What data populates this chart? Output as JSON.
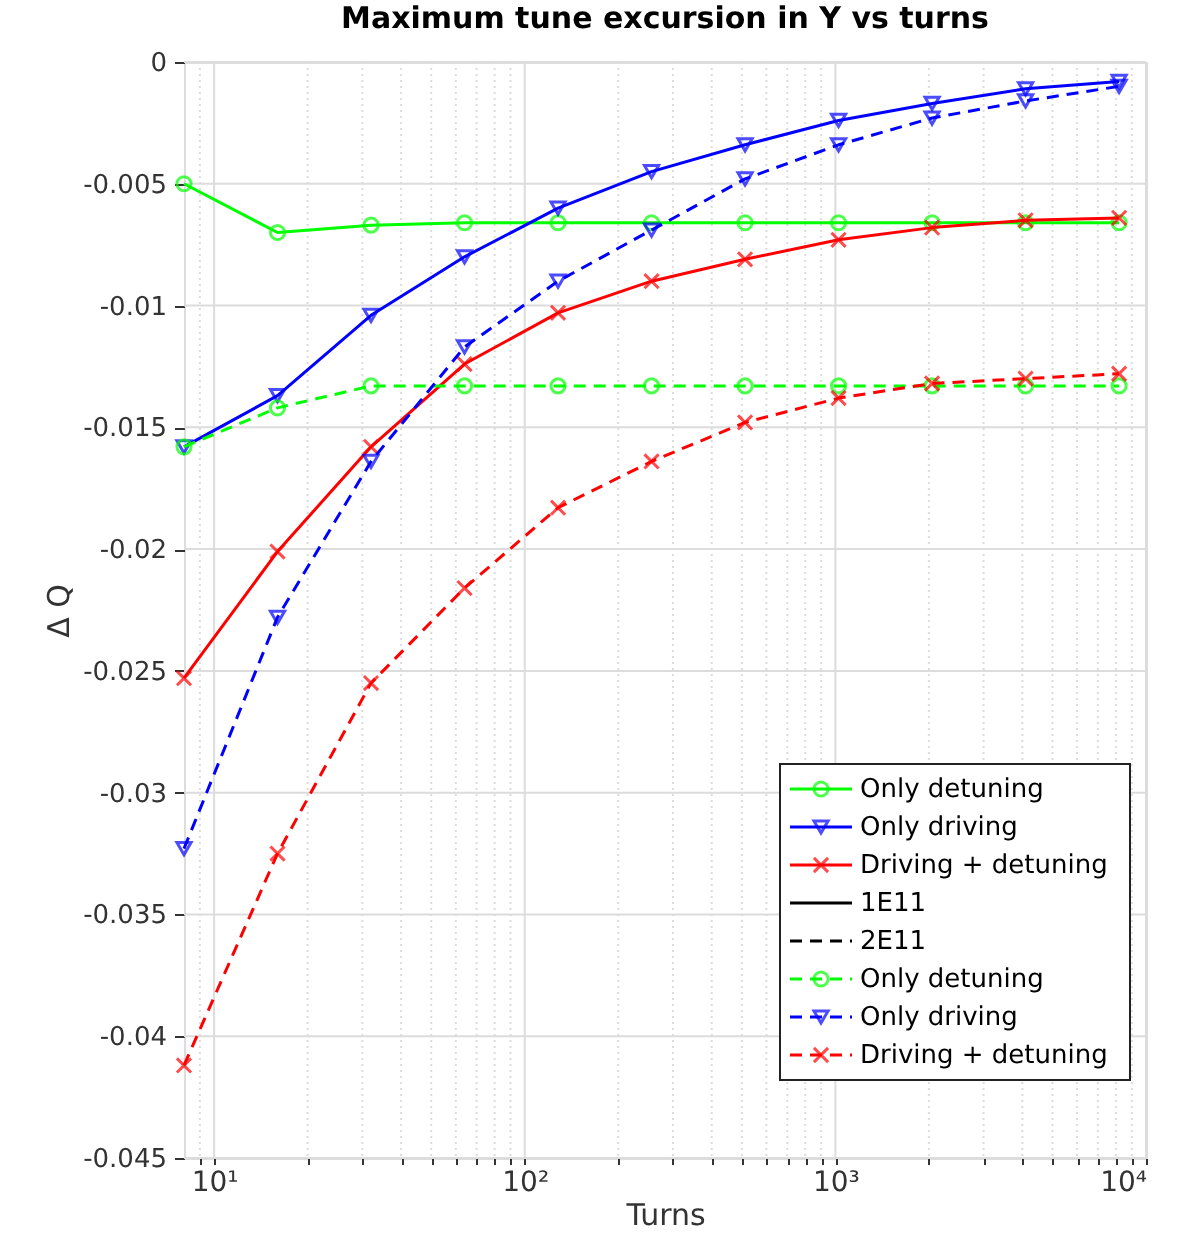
{
  "chart_data": {
    "type": "line",
    "title": "Maximum tune excursion in Y vs turns",
    "xlabel": "Turns",
    "ylabel": "Δ Q",
    "log": "x",
    "grid": true,
    "legend": "bottom right",
    "x": [
      8,
      16,
      32,
      64,
      128,
      256,
      512,
      1024,
      2048,
      4096,
      8192
    ],
    "xlim": [
      8,
      10000
    ],
    "ylim": [
      -0.045,
      0
    ],
    "xticks": [
      {
        "value": 9,
        "label": null
      },
      {
        "value": 10,
        "label": "10¹"
      },
      {
        "value": 20,
        "label": null
      },
      {
        "value": 30,
        "label": null
      },
      {
        "value": 40,
        "label": null
      },
      {
        "value": 50,
        "label": null
      },
      {
        "value": 60,
        "label": null
      },
      {
        "value": 70,
        "label": null
      },
      {
        "value": 80,
        "label": null
      },
      {
        "value": 90,
        "label": null
      },
      {
        "value": 100,
        "label": "10²"
      },
      {
        "value": 200,
        "label": null
      },
      {
        "value": 300,
        "label": null
      },
      {
        "value": 400,
        "label": null
      },
      {
        "value": 500,
        "label": null
      },
      {
        "value": 600,
        "label": null
      },
      {
        "value": 700,
        "label": null
      },
      {
        "value": 800,
        "label": null
      },
      {
        "value": 900,
        "label": null
      },
      {
        "value": 1000,
        "label": "10³"
      },
      {
        "value": 2000,
        "label": null
      },
      {
        "value": 3000,
        "label": null
      },
      {
        "value": 4000,
        "label": null
      },
      {
        "value": 5000,
        "label": null
      },
      {
        "value": 6000,
        "label": null
      },
      {
        "value": 7000,
        "label": null
      },
      {
        "value": 8000,
        "label": null
      },
      {
        "value": 9000,
        "label": null
      },
      {
        "value": 10000,
        "label": "10⁴"
      }
    ],
    "yticks": [
      -0.045,
      -0.04,
      -0.035,
      -0.03,
      -0.025,
      -0.02,
      -0.015,
      -0.01,
      -0.005,
      0
    ],
    "series": [
      {
        "name": "Only detuning",
        "color": "#00ff00",
        "line_style": "solid",
        "marker": "circle",
        "values": [
          -0.005,
          -0.007,
          -0.0067,
          -0.0066,
          -0.0066,
          -0.0066,
          -0.0066,
          -0.0066,
          -0.0066,
          -0.0066,
          -0.0066
        ]
      },
      {
        "name": "Only driving",
        "color": "#0000ff",
        "line_style": "solid",
        "marker": "triangle",
        "values": [
          -0.0158,
          -0.0137,
          -0.0104,
          -0.008,
          -0.006,
          -0.0045,
          -0.0034,
          -0.0024,
          -0.0017,
          -0.0011,
          -0.0008
        ]
      },
      {
        "name": "Driving + detuning",
        "color": "#ff0000",
        "line_style": "solid",
        "marker": "cross",
        "values": [
          -0.0253,
          -0.0201,
          -0.0158,
          -0.0124,
          -0.0103,
          -0.009,
          -0.0081,
          -0.0073,
          -0.0068,
          -0.0065,
          -0.0064
        ]
      },
      {
        "name": "1E11",
        "color": "#000000",
        "line_style": "solid",
        "marker": "none",
        "values": [
          null,
          null,
          null,
          null,
          null,
          null,
          null,
          null,
          null,
          null,
          null
        ]
      },
      {
        "name": "2E11",
        "color": "#000000",
        "line_style": "dashed",
        "marker": "none",
        "values": [
          null,
          null,
          null,
          null,
          null,
          null,
          null,
          null,
          null,
          null,
          null
        ]
      },
      {
        "name": "Only detuning",
        "color": "#00ff00",
        "line_style": "dashed",
        "marker": "circle",
        "values": [
          -0.0158,
          -0.0142,
          -0.0133,
          -0.0133,
          -0.0133,
          -0.0133,
          -0.0133,
          -0.0133,
          -0.0133,
          -0.0133,
          -0.0133
        ]
      },
      {
        "name": "Only driving",
        "color": "#0000ff",
        "line_style": "dashed",
        "marker": "triangle",
        "values": [
          -0.0323,
          -0.0228,
          -0.0164,
          -0.0117,
          -0.009,
          -0.0069,
          -0.0048,
          -0.0034,
          -0.0023,
          -0.0016,
          -0.001
        ]
      },
      {
        "name": "Driving + detuning",
        "color": "#ff0000",
        "line_style": "dashed",
        "marker": "cross",
        "values": [
          -0.0412,
          -0.0325,
          -0.0255,
          -0.0216,
          -0.0183,
          -0.0164,
          -0.0148,
          -0.0138,
          -0.0132,
          -0.013,
          -0.0128
        ]
      }
    ]
  }
}
